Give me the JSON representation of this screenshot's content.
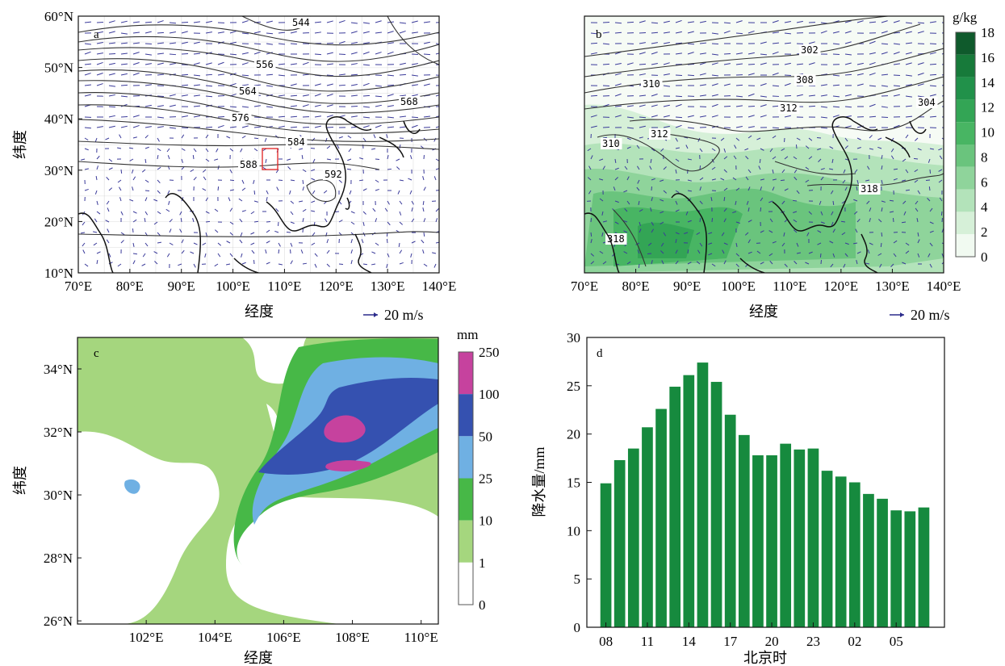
{
  "chart_data": [
    {
      "panel": "a",
      "type": "contour",
      "xlabel": "经度",
      "ylabel": "纬度",
      "xticks": [
        "70°E",
        "80°E",
        "90°E",
        "100°E",
        "110°E",
        "120°E",
        "130°E",
        "140°E"
      ],
      "yticks": [
        "60°N",
        "50°N",
        "40°N",
        "30°N",
        "20°N",
        "10°N"
      ],
      "xlim": [
        70,
        140
      ],
      "ylim": [
        10,
        60
      ],
      "contour_labels": [
        "544",
        "556",
        "564",
        "576",
        "568",
        "584",
        "588",
        "592"
      ],
      "vector_key": "20 m/s",
      "box": {
        "lon": [
          107,
          110
        ],
        "lat": [
          30,
          34
        ]
      }
    },
    {
      "panel": "b",
      "type": "contour",
      "xlabel": "经度",
      "xticks": [
        "70°E",
        "80°E",
        "90°E",
        "100°E",
        "110°E",
        "120°E",
        "130°E",
        "140°E"
      ],
      "xlim": [
        70,
        140
      ],
      "ylim": [
        10,
        60
      ],
      "contour_labels": [
        "302",
        "310",
        "308",
        "312",
        "304",
        "310",
        "312",
        "318",
        "318"
      ],
      "vector_key": "20 m/s",
      "colorbar": {
        "unit": "g/kg",
        "ticks": [
          "18",
          "16",
          "14",
          "12",
          "10",
          "8",
          "6",
          "4",
          "2",
          "0"
        ],
        "colors": [
          "#0f5a2c",
          "#177a3a",
          "#21914a",
          "#33a555",
          "#48b563",
          "#6ac47d",
          "#8fd49b",
          "#b3e3ba",
          "#d6f0d8",
          "#f1faf1"
        ]
      }
    },
    {
      "panel": "c",
      "type": "heatmap",
      "xlabel": "经度",
      "ylabel": "纬度",
      "xticks": [
        "102°E",
        "104°E",
        "106°E",
        "108°E",
        "110°E"
      ],
      "yticks": [
        "34°N",
        "32°N",
        "30°N",
        "28°N",
        "26°N"
      ],
      "xlim": [
        100,
        110.5
      ],
      "ylim": [
        25.9,
        35
      ],
      "colorbar": {
        "unit": "mm",
        "ticks": [
          "250",
          "100",
          "50",
          "25",
          "10",
          "1",
          "0"
        ],
        "colors": [
          "#c6429e",
          "#3551b0",
          "#6fb0e3",
          "#47b847",
          "#a5d67e",
          "#ffffff"
        ]
      }
    },
    {
      "panel": "d",
      "type": "bar",
      "xlabel": "北京时",
      "ylabel": "降水量/mm",
      "ylim": [
        0,
        30
      ],
      "yticks": [
        "0",
        "5",
        "10",
        "15",
        "20",
        "25",
        "30"
      ],
      "xtick_labels": [
        "08",
        "11",
        "14",
        "17",
        "20",
        "23",
        "02",
        "05"
      ],
      "xtick_positions": [
        0,
        3,
        6,
        9,
        12,
        15,
        18,
        21
      ],
      "bar_color": "#168a3e",
      "values": [
        14.9,
        17.3,
        18.5,
        20.7,
        22.6,
        24.9,
        26.1,
        27.4,
        25.4,
        22.0,
        19.9,
        17.8,
        17.8,
        19.0,
        18.4,
        18.5,
        16.2,
        15.6,
        15.0,
        13.8,
        13.3,
        12.1,
        12.0,
        12.4
      ]
    }
  ]
}
